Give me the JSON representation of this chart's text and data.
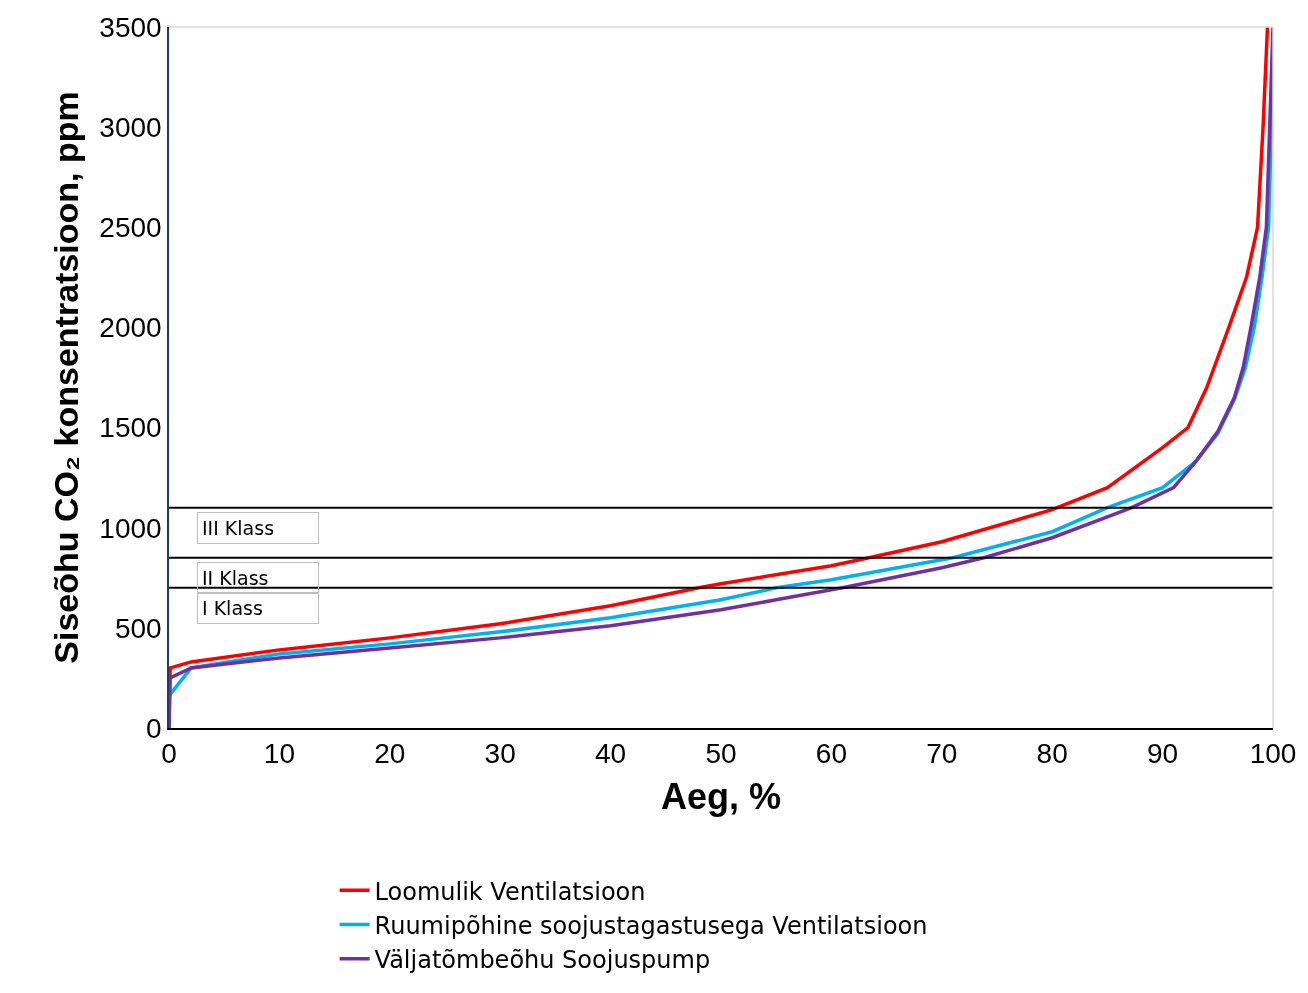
{
  "chart_data": {
    "type": "line",
    "xlabel": "Aeg, %",
    "ylabel": "Siseõhu CO₂ konsentratsioon, ppm",
    "xlim": [
      0,
      100
    ],
    "xticks": [
      0,
      10,
      20,
      30,
      40,
      50,
      60,
      70,
      80,
      90,
      100
    ],
    "ylim": [
      0,
      3500
    ],
    "yticks": [
      0,
      500,
      1000,
      1500,
      2000,
      2500,
      3000,
      3500
    ],
    "legend": "bottom",
    "marker": "none",
    "line_style": "solid",
    "series": [
      {
        "name": "Loomulik Ventilatsioon",
        "color": "#ff0000",
        "x": [
          0,
          0.1,
          2,
          10,
          20,
          30,
          40,
          48,
          50,
          60,
          63.4,
          70,
          80,
          85,
          90,
          92.3,
          94,
          96,
          97.6,
          98.6,
          99.1,
          99.5
        ],
        "values": [
          0,
          300,
          330,
          390,
          450,
          520,
          610,
          700,
          720,
          810,
          850,
          930,
          1090,
          1200,
          1400,
          1500,
          1700,
          2000,
          2250,
          2500,
          3000,
          3500
        ]
      },
      {
        "name": "Ruumipõhine soojustagastusega Ventilatsioon",
        "color": "#00b0f0",
        "x": [
          0,
          2,
          10,
          20,
          30,
          40,
          50,
          55,
          60,
          71,
          80,
          85,
          90,
          93,
          95,
          96.5,
          97.5,
          98.3,
          99,
          99.6,
          99.85,
          100
        ],
        "values": [
          160,
          300,
          370,
          420,
          480,
          550,
          640,
          700,
          740,
          850,
          980,
          1100,
          1200,
          1330,
          1470,
          1640,
          1800,
          2000,
          2250,
          2500,
          3000,
          3500
        ]
      },
      {
        "name": "Väljatõmbeõhu Soojuspump",
        "color": "#7030a0",
        "x": [
          0,
          0.1,
          2,
          10,
          20,
          30,
          40,
          50,
          55,
          61,
          70,
          73.8,
          80,
          87.2,
          91,
          93,
          95,
          96.5,
          97.3,
          98,
          98.8,
          99.4,
          99.7,
          100
        ],
        "values": [
          0,
          250,
          300,
          350,
          400,
          450,
          510,
          590,
          640,
          700,
          800,
          850,
          950,
          1100,
          1200,
          1330,
          1480,
          1650,
          1800,
          2000,
          2250,
          2500,
          3000,
          3500
        ]
      }
    ],
    "ref_lines": [
      {
        "axis": "y",
        "value": 1100,
        "label": "III Klass",
        "color": "#000000"
      },
      {
        "axis": "y",
        "value": 850,
        "label": "II Klass",
        "color": "#000000"
      },
      {
        "axis": "y",
        "value": 700,
        "label": "I Klass",
        "color": "#000000"
      }
    ]
  }
}
